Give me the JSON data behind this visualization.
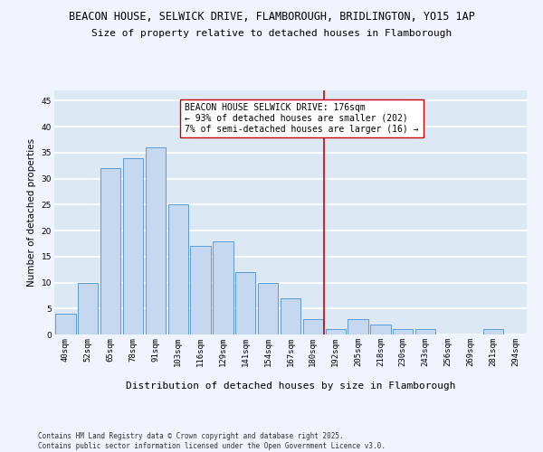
{
  "title1": "BEACON HOUSE, SELWICK DRIVE, FLAMBOROUGH, BRIDLINGTON, YO15 1AP",
  "title2": "Size of property relative to detached houses in Flamborough",
  "xlabel": "Distribution of detached houses by size in Flamborough",
  "ylabel": "Number of detached properties",
  "categories": [
    "40sqm",
    "52sqm",
    "65sqm",
    "78sqm",
    "91sqm",
    "103sqm",
    "116sqm",
    "129sqm",
    "141sqm",
    "154sqm",
    "167sqm",
    "180sqm",
    "192sqm",
    "205sqm",
    "218sqm",
    "230sqm",
    "243sqm",
    "256sqm",
    "269sqm",
    "281sqm",
    "294sqm"
  ],
  "values": [
    4,
    10,
    32,
    34,
    36,
    25,
    17,
    18,
    12,
    10,
    7,
    3,
    1,
    3,
    2,
    1,
    1,
    0,
    0,
    1,
    0
  ],
  "bar_color": "#c5d8f0",
  "bar_edge_color": "#5b9bd5",
  "background_color": "#dde8f5",
  "grid_color": "#ffffff",
  "annotation_text": "BEACON HOUSE SELWICK DRIVE: 176sqm\n← 93% of detached houses are smaller (202)\n7% of semi-detached houses are larger (16) →",
  "vline_x_index": 11.5,
  "vline_color": "#cc0000",
  "annotation_box_color": "#ffffff",
  "annotation_box_edge": "#cc0000",
  "ylim": [
    0,
    47
  ],
  "yticks": [
    0,
    5,
    10,
    15,
    20,
    25,
    30,
    35,
    40,
    45
  ],
  "footer": "Contains HM Land Registry data © Crown copyright and database right 2025.\nContains public sector information licensed under the Open Government Licence v3.0.",
  "title1_fontsize": 8.5,
  "title2_fontsize": 8,
  "xlabel_fontsize": 8,
  "ylabel_fontsize": 7.5,
  "tick_fontsize": 6.5,
  "annotation_fontsize": 7,
  "footer_fontsize": 5.5,
  "fig_bg": "#f0f4ff"
}
